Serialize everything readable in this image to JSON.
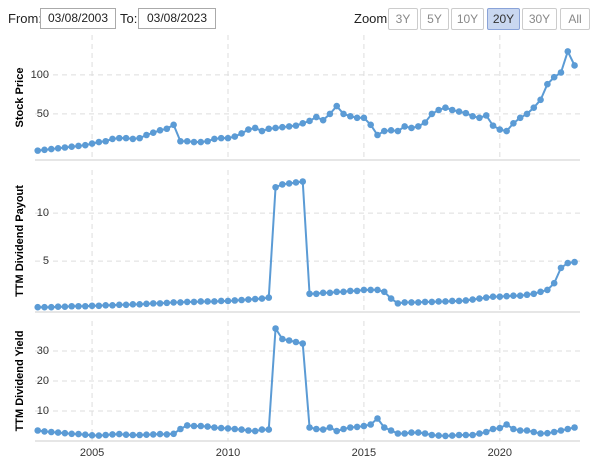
{
  "controls": {
    "from_label": "From:",
    "from_value": "03/08/2003",
    "to_label": "To:",
    "to_value": "03/08/2023",
    "zoom_label": "Zoom:",
    "zoom_options": [
      "3Y",
      "5Y",
      "10Y",
      "20Y",
      "30Y",
      "All"
    ],
    "zoom_selected": "20Y"
  },
  "chart_data": [
    {
      "type": "line",
      "ylabel": "Stock Price",
      "color": "#5b9bd5",
      "grid": true,
      "xlim": [
        2002.9,
        2022.95
      ],
      "ylim": [
        -9,
        151
      ],
      "yticks": [
        50,
        100
      ],
      "x": [
        2003,
        2003.25,
        2003.5,
        2003.75,
        2004,
        2004.25,
        2004.5,
        2004.75,
        2005,
        2005.25,
        2005.5,
        2005.75,
        2006,
        2006.25,
        2006.5,
        2006.75,
        2007,
        2007.25,
        2007.5,
        2007.75,
        2008,
        2008.25,
        2008.5,
        2008.75,
        2009,
        2009.25,
        2009.5,
        2009.75,
        2010,
        2010.25,
        2010.5,
        2010.75,
        2011,
        2011.25,
        2011.5,
        2011.75,
        2012,
        2012.25,
        2012.5,
        2012.75,
        2013,
        2013.25,
        2013.5,
        2013.75,
        2014,
        2014.25,
        2014.5,
        2014.75,
        2015,
        2015.25,
        2015.5,
        2015.75,
        2016,
        2016.25,
        2016.5,
        2016.75,
        2017,
        2017.25,
        2017.5,
        2017.75,
        2018,
        2018.25,
        2018.5,
        2018.75,
        2019,
        2019.25,
        2019.5,
        2019.75,
        2020,
        2020.25,
        2020.5,
        2020.75,
        2021,
        2021.25,
        2021.5,
        2021.75,
        2022,
        2022.25,
        2022.5,
        2022.75
      ],
      "values": [
        3,
        4,
        5,
        6,
        7,
        8,
        9,
        10,
        12,
        14,
        15,
        18,
        19,
        19,
        18,
        19,
        23,
        26,
        29,
        31,
        36,
        15,
        15,
        14,
        14,
        15,
        18,
        19,
        19,
        21,
        25,
        30,
        32,
        28,
        31,
        32,
        33,
        34,
        35,
        38,
        41,
        46,
        42,
        50,
        60,
        50,
        47,
        45,
        45,
        36,
        23,
        28,
        29,
        28,
        34,
        32,
        34,
        39,
        50,
        55,
        58,
        55,
        53,
        51,
        47,
        45,
        48,
        35,
        30,
        28,
        38,
        45,
        50,
        58,
        68,
        88,
        97,
        103,
        130,
        112
      ]
    },
    {
      "type": "line",
      "ylabel": "TTM Dividend Payout",
      "color": "#5b9bd5",
      "grid": true,
      "xlim": [
        2002.9,
        2022.95
      ],
      "ylim": [
        -0.3,
        14.5
      ],
      "yticks": [
        5,
        10
      ],
      "x": [
        2003,
        2003.25,
        2003.5,
        2003.75,
        2004,
        2004.25,
        2004.5,
        2004.75,
        2005,
        2005.25,
        2005.5,
        2005.75,
        2006,
        2006.25,
        2006.5,
        2006.75,
        2007,
        2007.25,
        2007.5,
        2007.75,
        2008,
        2008.25,
        2008.5,
        2008.75,
        2009,
        2009.25,
        2009.5,
        2009.75,
        2010,
        2010.25,
        2010.5,
        2010.75,
        2011,
        2011.25,
        2011.5,
        2011.75,
        2012,
        2012.25,
        2012.5,
        2012.75,
        2013,
        2013.25,
        2013.5,
        2013.75,
        2014,
        2014.25,
        2014.5,
        2014.75,
        2015,
        2015.25,
        2015.5,
        2015.75,
        2016,
        2016.25,
        2016.5,
        2016.75,
        2017,
        2017.25,
        2017.5,
        2017.75,
        2018,
        2018.25,
        2018.5,
        2018.75,
        2019,
        2019.25,
        2019.5,
        2019.75,
        2020,
        2020.25,
        2020.5,
        2020.75,
        2021,
        2021.25,
        2021.5,
        2021.75,
        2022,
        2022.25,
        2022.5,
        2022.75
      ],
      "values": [
        0.2,
        0.2,
        0.2,
        0.25,
        0.25,
        0.3,
        0.3,
        0.3,
        0.35,
        0.35,
        0.4,
        0.4,
        0.45,
        0.45,
        0.5,
        0.5,
        0.55,
        0.6,
        0.6,
        0.65,
        0.7,
        0.7,
        0.75,
        0.75,
        0.8,
        0.8,
        0.8,
        0.85,
        0.85,
        0.9,
        0.95,
        1.0,
        1.05,
        1.1,
        1.2,
        12.7,
        13.0,
        13.1,
        13.2,
        13.3,
        1.6,
        1.6,
        1.7,
        1.7,
        1.8,
        1.8,
        1.9,
        1.9,
        2.0,
        2.0,
        2.0,
        1.8,
        1.1,
        0.6,
        0.7,
        0.7,
        0.7,
        0.75,
        0.75,
        0.8,
        0.8,
        0.85,
        0.85,
        0.9,
        1.0,
        1.1,
        1.2,
        1.3,
        1.3,
        1.35,
        1.4,
        1.4,
        1.5,
        1.6,
        1.8,
        2.0,
        2.7,
        4.3,
        4.8,
        4.9
      ]
    },
    {
      "type": "line",
      "ylabel": "TTM Dividend Yield",
      "color": "#5b9bd5",
      "grid": true,
      "xlim": [
        2002.9,
        2022.95
      ],
      "ylim": [
        0,
        40
      ],
      "yticks": [
        10,
        20,
        30
      ],
      "xticks": [
        2005,
        2010,
        2015,
        2020
      ],
      "x": [
        2003,
        2003.25,
        2003.5,
        2003.75,
        2004,
        2004.25,
        2004.5,
        2004.75,
        2005,
        2005.25,
        2005.5,
        2005.75,
        2006,
        2006.25,
        2006.5,
        2006.75,
        2007,
        2007.25,
        2007.5,
        2007.75,
        2008,
        2008.25,
        2008.5,
        2008.75,
        2009,
        2009.25,
        2009.5,
        2009.75,
        2010,
        2010.25,
        2010.5,
        2010.75,
        2011,
        2011.25,
        2011.5,
        2011.75,
        2012,
        2012.25,
        2012.5,
        2012.75,
        2013,
        2013.25,
        2013.5,
        2013.75,
        2014,
        2014.25,
        2014.5,
        2014.75,
        2015,
        2015.25,
        2015.5,
        2015.75,
        2016,
        2016.25,
        2016.5,
        2016.75,
        2017,
        2017.25,
        2017.5,
        2017.75,
        2018,
        2018.25,
        2018.5,
        2018.75,
        2019,
        2019.25,
        2019.5,
        2019.75,
        2020,
        2020.25,
        2020.5,
        2020.75,
        2021,
        2021.25,
        2021.5,
        2021.75,
        2022,
        2022.25,
        2022.5,
        2022.75
      ],
      "values": [
        3.5,
        3.2,
        3.0,
        2.8,
        2.6,
        2.4,
        2.3,
        2.1,
        1.9,
        1.8,
        2.0,
        2.2,
        2.3,
        2.1,
        2.0,
        2.0,
        2.1,
        2.2,
        2.3,
        2.2,
        2.4,
        4.0,
        5.2,
        5.0,
        5.0,
        4.8,
        4.5,
        4.3,
        4.2,
        4.0,
        3.8,
        3.5,
        3.3,
        3.8,
        3.8,
        37.5,
        34,
        33.5,
        33,
        32.5,
        4.5,
        4.0,
        3.8,
        4.5,
        3.3,
        4.0,
        4.5,
        4.7,
        5.0,
        5.5,
        7.5,
        4.5,
        3.5,
        2.5,
        2.5,
        2.8,
        2.8,
        2.5,
        2.0,
        1.8,
        1.7,
        1.8,
        2.0,
        2.0,
        2.0,
        2.5,
        3.0,
        4.0,
        4.3,
        5.5,
        4.0,
        3.5,
        3.5,
        3.0,
        2.5,
        2.6,
        3.0,
        3.5,
        4.0,
        4.5
      ]
    }
  ]
}
